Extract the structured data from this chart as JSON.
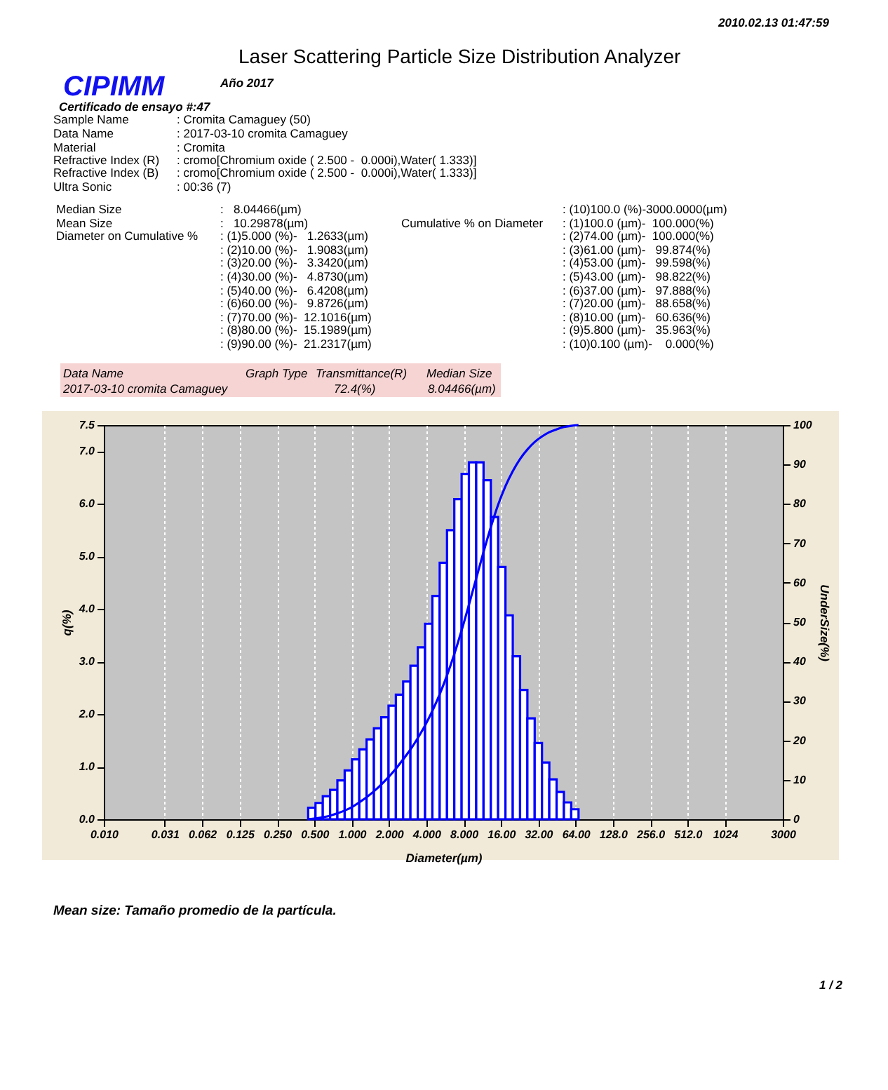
{
  "chart_data": {
    "type": "histogram",
    "title": "Laser Scattering Particle Size Distribution Analyzer",
    "xlabel": "Diameter(µm)",
    "ylabel": "q(%)",
    "y2label": "UnderSize(%)",
    "log": "x",
    "grid": "x",
    "marker": "none",
    "line_style": "solid",
    "xlim": [
      0.01,
      3000
    ],
    "xticks": [
      {
        "value": 0.01,
        "label": "0.010"
      },
      {
        "value": 0.031,
        "label": "0.031"
      },
      {
        "value": 0.062,
        "label": "0.062"
      },
      {
        "value": 0.125,
        "label": "0.125"
      },
      {
        "value": 0.25,
        "label": "0.250"
      },
      {
        "value": 0.5,
        "label": "0.500"
      },
      {
        "value": 1,
        "label": "1.000"
      },
      {
        "value": 2,
        "label": "2.000"
      },
      {
        "value": 4,
        "label": "4.000"
      },
      {
        "value": 8,
        "label": "8.000"
      },
      {
        "value": 16,
        "label": "16.00"
      },
      {
        "value": 32,
        "label": "32.00"
      },
      {
        "value": 64,
        "label": "64.00"
      },
      {
        "value": 128,
        "label": "128.0"
      },
      {
        "value": 256,
        "label": "256.0"
      },
      {
        "value": 512,
        "label": "512.0"
      },
      1024,
      3000
    ],
    "ylim": [
      0,
      7.5
    ],
    "yticks": [
      {
        "value": 0,
        "label": "0.0"
      },
      {
        "value": 1,
        "label": "1.0"
      },
      {
        "value": 2,
        "label": "2.0"
      },
      {
        "value": 3,
        "label": "3.0"
      },
      {
        "value": 4,
        "label": "4.0"
      },
      {
        "value": 5,
        "label": "5.0"
      },
      {
        "value": 6,
        "label": "6.0"
      },
      {
        "value": 7,
        "label": "7.0"
      },
      7.5
    ],
    "y2lim": [
      0,
      100
    ],
    "y2ticks": [
      0,
      10,
      20,
      30,
      40,
      50,
      60,
      70,
      80,
      90,
      100
    ],
    "series": [
      {
        "color": "#0000ff",
        "bins": [
          0.445,
          0.51,
          0.584,
          0.669,
          0.766,
          0.877,
          1.005,
          1.151,
          1.318,
          1.51,
          1.729,
          1.981,
          2.269,
          2.599,
          2.976,
          3.409,
          3.905,
          4.472,
          5.122,
          5.867,
          6.72,
          7.697,
          8.816,
          10.097,
          11.565,
          13.246,
          15.172,
          17.377,
          19.904,
          22.797,
          26.111,
          29.907,
          34.255,
          39.234,
          44.938,
          51.471,
          58.953,
          67.523
        ],
        "values": [
          0.22,
          0.31,
          0.44,
          0.56,
          0.74,
          0.93,
          1.14,
          1.33,
          1.52,
          1.73,
          1.94,
          2.16,
          2.37,
          2.62,
          2.92,
          3.27,
          3.72,
          4.25,
          4.88,
          5.5,
          6.09,
          6.57,
          6.79,
          6.79,
          6.45,
          5.75,
          4.8,
          3.88,
          3.1,
          2.46,
          1.92,
          1.45,
          1.08,
          0.76,
          0.52,
          0.32,
          0.19
        ]
      },
      {
        "type": "line",
        "axis": "y2",
        "color": "#0000ff",
        "x": [
          0.445,
          0.51,
          0.584,
          0.669,
          0.766,
          0.877,
          1.005,
          1.151,
          1.318,
          1.51,
          1.729,
          1.981,
          2.269,
          2.599,
          2.976,
          3.409,
          3.905,
          4.472,
          5.122,
          5.867,
          6.72,
          7.697,
          8.816,
          10.097,
          11.565,
          13.246,
          15.172,
          17.377,
          19.904,
          22.797,
          26.111,
          29.907,
          34.255,
          39.234,
          44.938,
          51.471,
          58.953,
          67.523
        ],
        "values": [
          0,
          0.2,
          0.5,
          0.9,
          1.5,
          2.2,
          3.1,
          4.3,
          5.6,
          7.1,
          8.8,
          10.7,
          12.8,
          15.2,
          17.7,
          20.6,
          23.8,
          27.5,
          31.7,
          36.5,
          41.9,
          47.9,
          54.4,
          61.1,
          67.8,
          74.1,
          79.8,
          84.5,
          88.3,
          91.4,
          93.8,
          95.7,
          97.1,
          98.2,
          98.9,
          99.5,
          99.8,
          100
        ]
      }
    ],
    "annotations": [
      "2010.02.13 01:47:59",
      "CIPIMM",
      "Año 2017",
      "Certificado de ensayo #:47",
      "Sample Name",
      ": Cromita Camaguey (50)",
      "Data Name",
      ": 2017-03-10 cromita Camaguey",
      "Material",
      ": Cromita",
      "Refractive Index (R)",
      ": cromo[Chromium oxide ( 2.500 -  0.000i),Water( 1.333)]",
      "Refractive Index (B)",
      ": cromo[Chromium oxide ( 2.500 -  0.000i),Water( 1.333)]",
      "Ultra Sonic",
      ": 00:36 (7)",
      "Median Size",
      ":   8.04466(µm)",
      "Mean Size",
      ":   10.29878(µm)",
      "Diameter on Cumulative %",
      ": (1)5.000 (%)-   1.2633(µm)",
      ": (2)10.00 (%)-   1.9083(µm)",
      ": (3)20.00 (%)-   3.3420(µm)",
      ": (4)30.00 (%)-   4.8730(µm)",
      ": (5)40.00 (%)-   6.4208(µm)",
      ": (6)60.00 (%)-   9.8726(µm)",
      ": (7)70.00 (%)-  12.1016(µm)",
      ": (8)80.00 (%)-  15.1989(µm)",
      ": (9)90.00 (%)-  21.2317(µm)",
      ": (10)100.0 (%)-3000.0000(µm)",
      "Cumulative % on Diameter",
      ": (1)100.0 (µm)-  100.000(%)",
      ": (2)74.00 (µm)-  100.000(%)",
      ": (3)61.00 (µm)-   99.874(%)",
      ": (4)53.00 (µm)-   99.598(%)",
      ": (5)43.00 (µm)-   98.822(%)",
      ": (6)37.00 (µm)-   97.888(%)",
      ": (7)20.00 (µm)-   88.658(%)",
      ": (8)10.00 (µm)-   60.636(%)",
      ": (9)5.800 (µm)-   35.963(%)",
      ": (10)0.100 (µm)-    0.000(%)",
      "Data Name",
      "Graph Type",
      "Transmittance(R)",
      "Median Size",
      "2017-03-10 cromita Camaguey",
      "72.4(%)",
      "8.04466(µm)",
      "Mean size: Tamaño promedio de la partícula.",
      "1 / 2"
    ]
  }
}
